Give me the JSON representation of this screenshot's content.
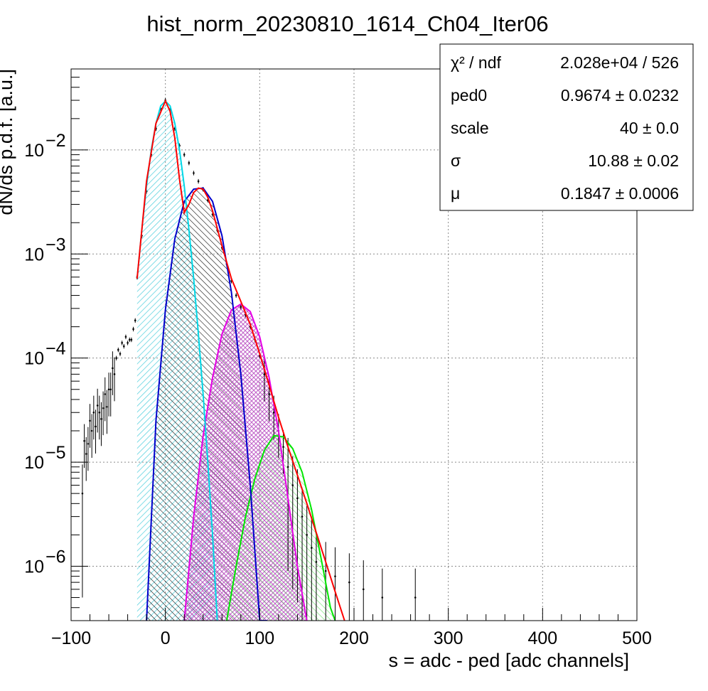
{
  "chart_data": {
    "type": "scatter",
    "title": "hist_norm_20230810_1614_Ch04_Iter06",
    "xlabel": "s = adc - ped [adc channels]",
    "ylabel": "dN/ds p.d.f. [a.u.]",
    "xlim": [
      -100,
      500
    ],
    "ylim": [
      3e-07,
      0.06
    ],
    "y_scale": "log",
    "grid": true,
    "x_ticks": [
      {
        "value": -100,
        "label": "−100"
      },
      {
        "value": 0,
        "label": "0"
      },
      {
        "value": 100,
        "label": "100"
      },
      {
        "value": 200,
        "label": "200"
      },
      {
        "value": 300,
        "label": "300"
      },
      {
        "value": 400,
        "label": "400"
      },
      {
        "value": 500,
        "label": "500"
      }
    ],
    "y_ticks": [
      {
        "value": 0.01,
        "base": "10",
        "exp": "−2"
      },
      {
        "value": 0.001,
        "base": "10",
        "exp": "−3"
      },
      {
        "value": 0.0001,
        "base": "10",
        "exp": "−4"
      },
      {
        "value": 1e-05,
        "base": "10",
        "exp": "−5"
      },
      {
        "value": 1e-06,
        "base": "10",
        "exp": "−6"
      }
    ],
    "stats_box": {
      "rows": [
        {
          "label": "χ² / ndf",
          "value": "2.028e+04 / 526"
        },
        {
          "label": "ped0",
          "value": "0.9674 ± 0.0232"
        },
        {
          "label": "scale",
          "value": "40 ± 0.0"
        },
        {
          "label": "σ",
          "value": "10.88 ± 0.02"
        },
        {
          "label": "μ",
          "value": "0.1847 ± 0.0006"
        }
      ]
    },
    "histogram_points": [
      [
        -88,
        5e-06
      ],
      [
        -86,
        1.6e-05
      ],
      [
        -84,
        1.2e-05
      ],
      [
        -82,
        1.5e-05
      ],
      [
        -80,
        2.5e-05
      ],
      [
        -78,
        2e-05
      ],
      [
        -76,
        3e-05
      ],
      [
        -74,
        2.2e-05
      ],
      [
        -72,
        3.5e-05
      ],
      [
        -70,
        3e-05
      ],
      [
        -68,
        2.6e-05
      ],
      [
        -66,
        3.3e-05
      ],
      [
        -64,
        4.5e-05
      ],
      [
        -62,
        3.4e-05
      ],
      [
        -60,
        5e-05
      ],
      [
        -58,
        5e-05
      ],
      [
        -56,
        8e-05
      ],
      [
        -54,
        7e-05
      ],
      [
        -52,
        0.0001
      ],
      [
        -50,
        0.00012
      ],
      [
        -48,
        0.00011
      ],
      [
        -46,
        0.00014
      ],
      [
        -44,
        0.00013
      ],
      [
        -42,
        0.00016
      ],
      [
        -40,
        0.00014
      ],
      [
        -38,
        0.00015
      ],
      [
        -36,
        0.00015
      ],
      [
        -34,
        0.00019
      ],
      [
        -32,
        0.00023
      ],
      [
        -30,
        0.0006
      ],
      [
        -25,
        0.0015
      ],
      [
        -20,
        0.004
      ],
      [
        -15,
        0.009
      ],
      [
        -10,
        0.016
      ],
      [
        -5,
        0.025
      ],
      [
        0,
        0.03
      ],
      [
        5,
        0.024
      ],
      [
        10,
        0.016
      ],
      [
        15,
        0.011
      ],
      [
        20,
        0.009
      ],
      [
        25,
        0.0075
      ],
      [
        30,
        0.006
      ],
      [
        35,
        0.005
      ],
      [
        40,
        0.0042
      ],
      [
        45,
        0.0033
      ],
      [
        50,
        0.0024
      ],
      [
        55,
        0.0017
      ],
      [
        60,
        0.00115
      ],
      [
        65,
        0.0008
      ],
      [
        70,
        0.00055
      ],
      [
        75,
        0.0004
      ],
      [
        80,
        0.00031
      ],
      [
        85,
        0.00026
      ],
      [
        90,
        0.0002
      ],
      [
        95,
        0.00015
      ],
      [
        100,
        0.000105
      ],
      [
        105,
        7e-05
      ],
      [
        110,
        4.5e-05
      ],
      [
        115,
        3e-05
      ],
      [
        120,
        2e-05
      ],
      [
        125,
        1.4e-05
      ],
      [
        130,
        9e-06
      ],
      [
        135,
        6e-06
      ],
      [
        140,
        4.5e-06
      ],
      [
        145,
        3e-06
      ],
      [
        150,
        2e-06
      ],
      [
        155,
        1.5e-06
      ],
      [
        160,
        1.1e-06
      ],
      [
        170,
        9e-07
      ],
      [
        180,
        8e-07
      ],
      [
        195,
        7e-07
      ],
      [
        210,
        6e-07
      ],
      [
        230,
        5e-07
      ],
      [
        265,
        5e-07
      ]
    ],
    "series": [
      {
        "color": "#ff0000",
        "fill": "none",
        "x": [
          -30,
          -20,
          -10,
          0,
          5,
          10,
          15,
          20,
          25,
          30,
          35,
          40,
          45,
          50,
          60,
          70,
          80,
          90,
          100,
          110,
          120,
          130,
          140,
          150,
          160,
          170,
          180,
          190
        ],
        "y": [
          0.00058,
          0.005,
          0.018,
          0.0295,
          0.0235,
          0.013,
          0.0052,
          0.0025,
          0.003,
          0.0039,
          0.0043,
          0.0042,
          0.0035,
          0.0026,
          0.0012,
          0.00058,
          0.00035,
          0.00021,
          0.00011,
          5.5e-05,
          2.7e-05,
          1.4e-05,
          7.5e-06,
          4e-06,
          2.1e-06,
          1.1e-06,
          5.7e-07,
          3e-07
        ]
      },
      {
        "color": "#00d7e6",
        "fill": "#7ed8e3",
        "x": [
          -30,
          -25,
          -20,
          -15,
          -10,
          -5,
          0,
          5,
          10,
          15,
          20,
          25,
          30,
          35,
          40,
          45,
          50,
          55
        ],
        "y": [
          0.00058,
          0.0017,
          0.0045,
          0.01,
          0.018,
          0.0265,
          0.0295,
          0.0265,
          0.018,
          0.01,
          0.0045,
          0.0017,
          0.00058,
          0.00017,
          4.5e-05,
          1e-05,
          2e-06,
          3e-07
        ]
      },
      {
        "color": "#0000cc",
        "fill": "#333333",
        "x": [
          -20,
          -10,
          0,
          10,
          20,
          30,
          40,
          50,
          60,
          70,
          80,
          90,
          100,
          108
        ],
        "y": [
          3e-07,
          2.5e-05,
          0.00029,
          0.0014,
          0.0032,
          0.0042,
          0.0043,
          0.0032,
          0.0015,
          0.00043,
          7e-05,
          6e-06,
          3e-07,
          3e-07
        ]
      },
      {
        "color": "#e600e6",
        "fill": "#c060c8",
        "x": [
          20,
          30,
          40,
          50,
          60,
          70,
          80,
          90,
          100,
          110,
          120,
          130,
          140,
          150
        ],
        "y": [
          3e-07,
          3e-06,
          1.8e-05,
          6.5e-05,
          0.00017,
          0.00029,
          0.00033,
          0.00028,
          0.00016,
          6.5e-05,
          2e-05,
          4.5e-06,
          1e-06,
          3e-07
        ]
      },
      {
        "color": "#00e600",
        "fill": "#6ce46c",
        "x": [
          65,
          75,
          85,
          95,
          105,
          115,
          125,
          135,
          145,
          155,
          165,
          175,
          180
        ],
        "y": [
          3e-07,
          1e-06,
          3e-06,
          7e-06,
          1.3e-05,
          1.8e-05,
          1.75e-05,
          1.35e-05,
          8e-06,
          3.5e-06,
          1.2e-06,
          4e-07,
          3e-07
        ]
      }
    ]
  }
}
